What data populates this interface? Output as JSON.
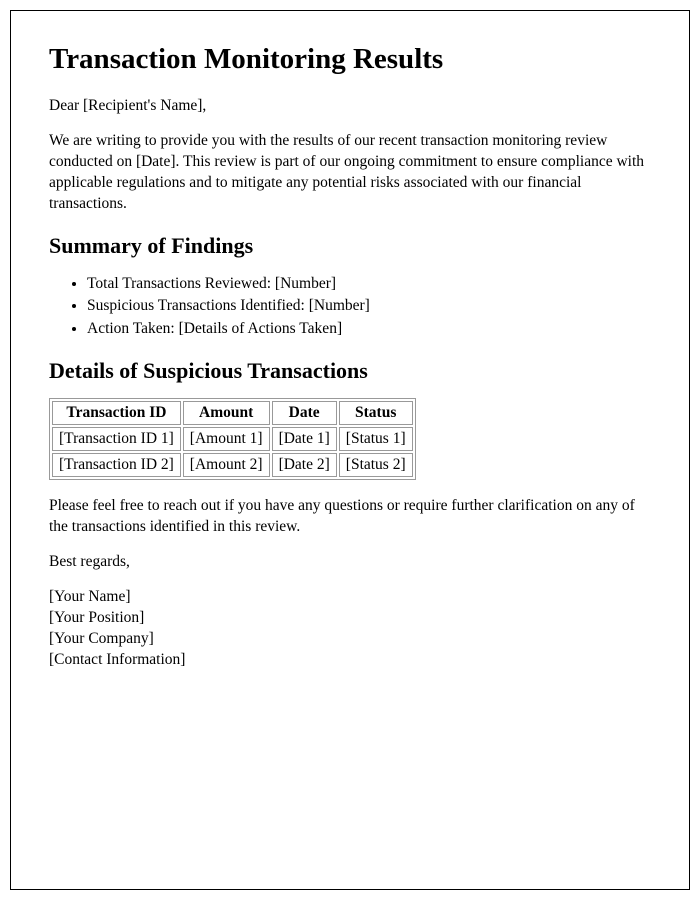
{
  "title": "Transaction Monitoring Results",
  "salutation": "Dear [Recipient's Name],",
  "intro": "We are writing to provide you with the results of our recent transaction monitoring review conducted on [Date]. This review is part of our ongoing commitment to ensure compliance with applicable regulations and to mitigate any potential risks associated with our financial transactions.",
  "summary": {
    "heading": "Summary of Findings",
    "items": [
      "Total Transactions Reviewed: [Number]",
      "Suspicious Transactions Identified: [Number]",
      "Action Taken: [Details of Actions Taken]"
    ]
  },
  "details": {
    "heading": "Details of Suspicious Transactions",
    "columns": [
      "Transaction ID",
      "Amount",
      "Date",
      "Status"
    ],
    "rows": [
      [
        "[Transaction ID 1]",
        "[Amount 1]",
        "[Date 1]",
        "[Status 1]"
      ],
      [
        "[Transaction ID 2]",
        "[Amount 2]",
        "[Date 2]",
        "[Status 2]"
      ]
    ]
  },
  "outro": "Please feel free to reach out if you have any questions or require further clarification on any of the transactions identified in this review.",
  "closing": "Best regards,",
  "signature": [
    "[Your Name]",
    "[Your Position]",
    "[Your Company]",
    "[Contact Information]"
  ]
}
